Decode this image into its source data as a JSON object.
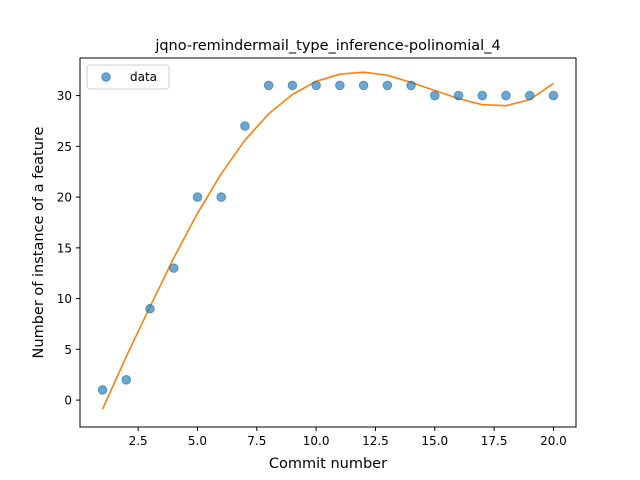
{
  "chart_data": {
    "type": "scatter",
    "title": "jqno-remindermail_type_inference-polinomial_4",
    "xlabel": "Commit number",
    "ylabel": "Number of instance of a feature",
    "xlim": [
      0.05,
      20.95
    ],
    "ylim": [
      -2.65,
      33.7
    ],
    "xticks": [
      2.5,
      5.0,
      7.5,
      10.0,
      12.5,
      15.0,
      17.5,
      20.0
    ],
    "xtick_labels": [
      "2.5",
      "5.0",
      "7.5",
      "10.0",
      "12.5",
      "15.0",
      "17.5",
      "20.0"
    ],
    "yticks": [
      0,
      5,
      10,
      15,
      20,
      25,
      30
    ],
    "ytick_labels": [
      "0",
      "5",
      "10",
      "15",
      "20",
      "25",
      "30"
    ],
    "legend": {
      "position": "upper-left",
      "entries": [
        "data"
      ]
    },
    "grid": false,
    "colors": {
      "data": "#1f77b4",
      "fit": "#ff7f0e"
    },
    "series": [
      {
        "name": "data",
        "style": "markers",
        "x": [
          1,
          2,
          3,
          4,
          5,
          6,
          7,
          8,
          9,
          10,
          11,
          12,
          13,
          14,
          15,
          16,
          17,
          18,
          19,
          20
        ],
        "y": [
          1,
          2,
          9,
          13,
          20,
          20,
          27,
          31,
          31,
          31,
          31,
          31,
          31,
          31,
          30,
          30,
          30,
          30,
          30,
          30
        ]
      },
      {
        "style": "line",
        "x": [
          1,
          2,
          3,
          4,
          5,
          6,
          7,
          8,
          9,
          10,
          11,
          12,
          13,
          14,
          15,
          16,
          17,
          18,
          19,
          20
        ],
        "y": [
          -0.9,
          4.3,
          9.2,
          14.0,
          18.4,
          22.3,
          25.6,
          28.2,
          30.1,
          31.4,
          32.1,
          32.3,
          32.0,
          31.3,
          30.5,
          29.7,
          29.1,
          29.0,
          29.6,
          31.2
        ]
      }
    ]
  }
}
